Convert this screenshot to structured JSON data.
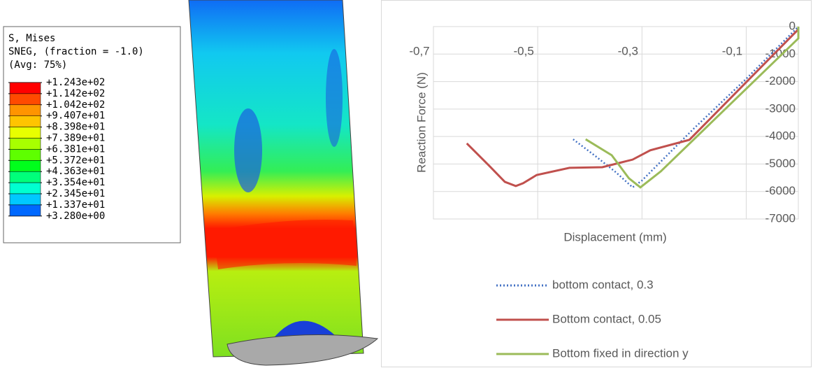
{
  "contour_legend": {
    "title_lines": [
      "S, Mises",
      "SNEG, (fraction = -1.0)",
      "(Avg: 75%)"
    ],
    "levels": [
      "+1.243e+02",
      "+1.142e+02",
      "+1.042e+02",
      "+9.407e+01",
      "+8.398e+01",
      "+7.389e+01",
      "+6.381e+01",
      "+5.372e+01",
      "+4.363e+01",
      "+3.354e+01",
      "+2.345e+01",
      "+1.337e+01",
      "+3.280e+00"
    ],
    "colors": [
      "#ff0000",
      "#ff4a00",
      "#ff9400",
      "#ffc400",
      "#e8ff00",
      "#a8ff00",
      "#5eff00",
      "#00ff1c",
      "#00ff7a",
      "#00ffd0",
      "#00c8ff",
      "#0068ff",
      "#0000ff"
    ]
  },
  "chart_data": {
    "type": "line",
    "x_label": "Displacement (mm)",
    "y_label": "Reaction Force (N)",
    "xlim": [
      -0.7,
      0
    ],
    "xticks": [
      {
        "value": -0.7,
        "label": "-0,7"
      },
      {
        "value": -0.5,
        "label": "-0,5"
      },
      {
        "value": -0.3,
        "label": "-0,3"
      },
      {
        "value": -0.1,
        "label": "-0,1"
      }
    ],
    "ylim": [
      -7000,
      0
    ],
    "yticks": [
      0,
      -1000,
      -2000,
      -3000,
      -4000,
      -5000,
      -6000,
      -7000
    ],
    "grid": true,
    "series": [
      {
        "name": "bottom contact, 0.3",
        "color": "#4472c4",
        "dash": "dotted",
        "x": [
          -0.432,
          -0.39,
          -0.35,
          -0.318,
          -0.3,
          -0.2,
          -0.1,
          0
        ],
        "values": [
          -4100,
          -4700,
          -5300,
          -5850,
          -5600,
          -3700,
          -1900,
          0
        ]
      },
      {
        "name": "Bottom contact, 0.05",
        "color": "#c0504d",
        "dash": "solid",
        "x": [
          -0.636,
          -0.593,
          -0.563,
          -0.542,
          -0.528,
          -0.502,
          -0.439,
          -0.376,
          -0.318,
          -0.284,
          -0.209,
          0
        ],
        "values": [
          -4250,
          -5065,
          -5650,
          -5800,
          -5700,
          -5400,
          -5140,
          -5115,
          -4840,
          -4500,
          -4120,
          -100
        ]
      },
      {
        "name": "Bottom fixed in direction y",
        "color": "#9bbb59",
        "dash": "solid",
        "x": [
          -0.408,
          -0.358,
          -0.325,
          -0.303,
          -0.264,
          0,
          0
        ],
        "values": [
          -4100,
          -4680,
          -5520,
          -5850,
          -5270,
          -430,
          0
        ]
      }
    ]
  }
}
